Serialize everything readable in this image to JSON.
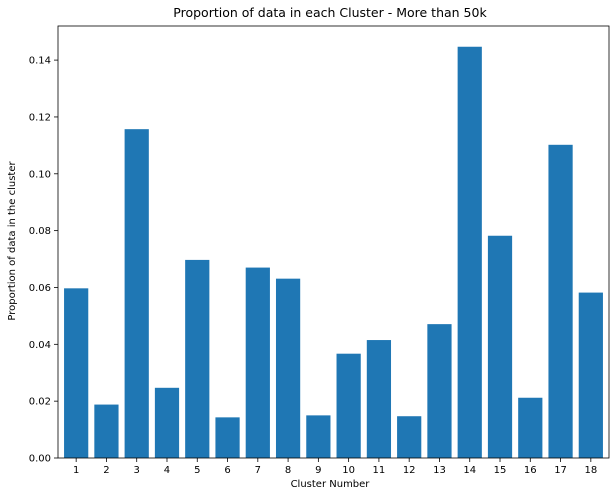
{
  "chart_data": {
    "type": "bar",
    "title": "Proportion of data in each Cluster - More than 50k",
    "xlabel": "Cluster Number",
    "ylabel": "Proportion of data in the cluster",
    "categories": [
      "1",
      "2",
      "3",
      "4",
      "5",
      "6",
      "7",
      "8",
      "9",
      "10",
      "11",
      "12",
      "13",
      "14",
      "15",
      "16",
      "17",
      "18"
    ],
    "values": [
      0.0597,
      0.0188,
      0.1157,
      0.0247,
      0.0697,
      0.0143,
      0.067,
      0.0631,
      0.015,
      0.0367,
      0.0415,
      0.0147,
      0.0471,
      0.1447,
      0.0782,
      0.0212,
      0.1102,
      0.0582
    ],
    "yticks": [
      "0.00",
      "0.02",
      "0.04",
      "0.06",
      "0.08",
      "0.10",
      "0.12",
      "0.14"
    ],
    "ylim": [
      0,
      0.152
    ],
    "bar_color": "#1f77b4",
    "grid": false,
    "legend": "none"
  }
}
